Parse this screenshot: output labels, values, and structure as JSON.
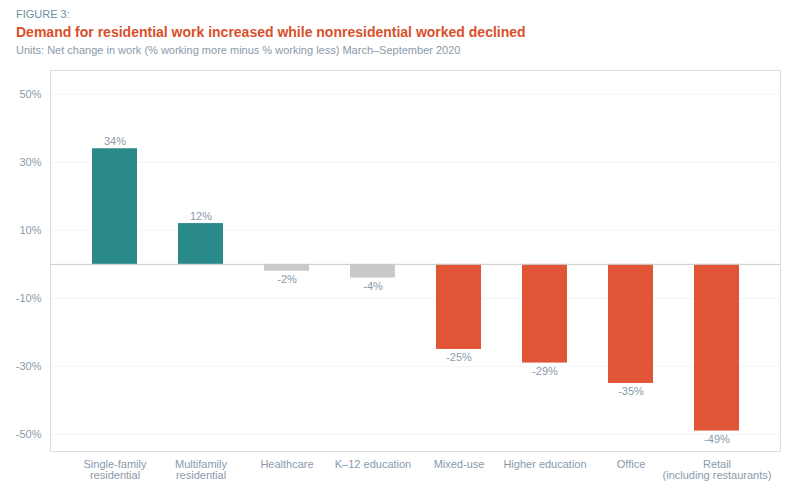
{
  "chart_data": {
    "type": "bar",
    "figure_label": "FIGURE 3:",
    "title": "Demand for residential work increased while nonresidential worked declined",
    "subtitle": "Units: Net change in work (% working more minus % working less) March–September 2020",
    "categories": [
      "Single-family\nresidential",
      "Multifamily\nresidential",
      "Healthcare",
      "K–12 education",
      "Mixed-use",
      "Higher education",
      "Office",
      "Retail\n(including restaurants)"
    ],
    "values": [
      34,
      12,
      -2,
      -4,
      -25,
      -29,
      -35,
      -49
    ],
    "value_labels": [
      "34%",
      "12%",
      "-2%",
      "-4%",
      "-25%",
      "-29%",
      "-35%",
      "-49%"
    ],
    "colors": [
      "#2a8a8a",
      "#2a8a8a",
      "#c9c9c9",
      "#c9c9c9",
      "#e05535",
      "#e05535",
      "#e05535",
      "#e05535"
    ],
    "ylim": [
      -55,
      57
    ],
    "yticks": [
      {
        "value": -50,
        "label": "-50%"
      },
      {
        "value": -30,
        "label": "-30%"
      },
      {
        "value": -10,
        "label": "-10%"
      },
      {
        "value": 10,
        "label": "10%"
      },
      {
        "value": 30,
        "label": "30%"
      },
      {
        "value": 50,
        "label": "50%"
      }
    ],
    "grid": true,
    "data_labels": true
  }
}
